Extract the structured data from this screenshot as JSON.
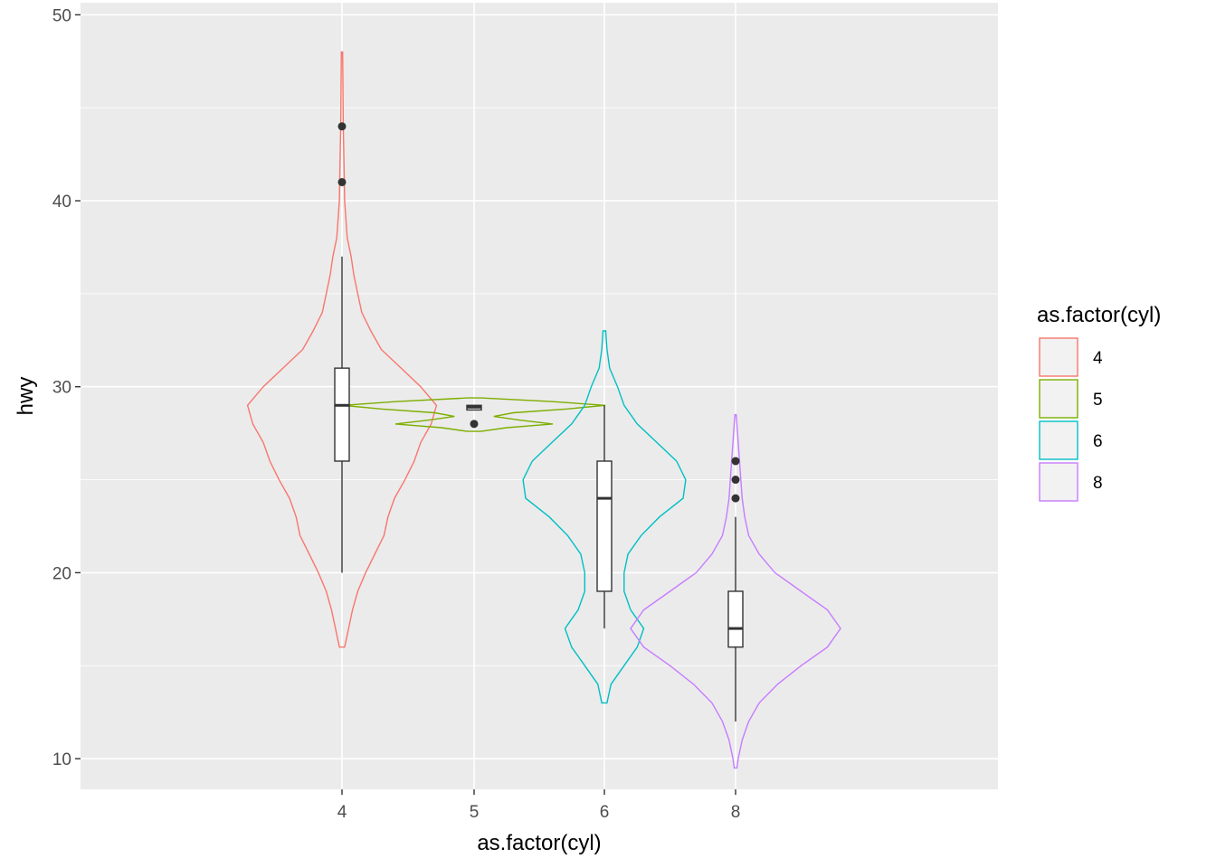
{
  "chart_data": {
    "type": "violin",
    "xlabel": "as.factor(cyl)",
    "ylabel": "hwy",
    "categories": [
      "4",
      "5",
      "6",
      "8"
    ],
    "ylim": [
      8.35,
      50.65
    ],
    "y_ticks": [
      "10",
      "20",
      "30",
      "40",
      "50"
    ],
    "grid": true,
    "legend": {
      "title": "as.factor(cyl)",
      "placement": "right",
      "entries": [
        "4",
        "5",
        "6",
        "8"
      ]
    },
    "series": [
      {
        "category": "4",
        "color": "#F8766D",
        "violin": {
          "ymin": 16,
          "ymax": 48,
          "profile": [
            [
              16,
              0.02
            ],
            [
              17,
              0.05
            ],
            [
              18,
              0.08
            ],
            [
              19,
              0.12
            ],
            [
              20,
              0.18
            ],
            [
              21,
              0.25
            ],
            [
              22,
              0.32
            ],
            [
              23,
              0.35
            ],
            [
              24,
              0.4
            ],
            [
              25,
              0.48
            ],
            [
              26,
              0.55
            ],
            [
              27,
              0.6
            ],
            [
              28,
              0.68
            ],
            [
              29,
              0.72
            ],
            [
              30,
              0.6
            ],
            [
              31,
              0.45
            ],
            [
              32,
              0.3
            ],
            [
              33,
              0.22
            ],
            [
              34,
              0.15
            ],
            [
              35,
              0.12
            ],
            [
              36,
              0.09
            ],
            [
              37,
              0.07
            ],
            [
              38,
              0.04
            ],
            [
              40,
              0.02
            ],
            [
              42,
              0.015
            ],
            [
              44,
              0.01
            ],
            [
              48,
              0.005
            ]
          ]
        },
        "box": {
          "lower": 26,
          "median": 29,
          "upper": 31,
          "whisker_low": 20,
          "whisker_high": 37
        },
        "outliers": [
          44,
          41
        ]
      },
      {
        "category": "5",
        "color": "#7CAE00",
        "violin": {
          "ymin": 27.6,
          "ymax": 29.4,
          "profile": [
            [
              27.6,
              0.05
            ],
            [
              27.8,
              0.25
            ],
            [
              28,
              0.6
            ],
            [
              28.2,
              0.35
            ],
            [
              28.4,
              0.15
            ],
            [
              28.6,
              0.3
            ],
            [
              28.8,
              0.7
            ],
            [
              29,
              1.0
            ],
            [
              29.2,
              0.6
            ],
            [
              29.4,
              0.05
            ]
          ]
        },
        "box": {
          "lower": 28.75,
          "median": 28.9,
          "upper": 29,
          "whisker_low": 28.75,
          "whisker_high": 29
        },
        "outliers": [
          28
        ]
      },
      {
        "category": "6",
        "color": "#00BFC4",
        "violin": {
          "ymin": 13,
          "ymax": 33,
          "profile": [
            [
              13,
              0.02
            ],
            [
              14,
              0.05
            ],
            [
              15,
              0.15
            ],
            [
              16,
              0.25
            ],
            [
              17,
              0.3
            ],
            [
              18,
              0.2
            ],
            [
              19,
              0.15
            ],
            [
              20,
              0.15
            ],
            [
              21,
              0.18
            ],
            [
              22,
              0.28
            ],
            [
              23,
              0.42
            ],
            [
              24,
              0.6
            ],
            [
              25,
              0.62
            ],
            [
              26,
              0.55
            ],
            [
              27,
              0.4
            ],
            [
              28,
              0.25
            ],
            [
              29,
              0.15
            ],
            [
              30,
              0.1
            ],
            [
              31,
              0.04
            ],
            [
              32,
              0.02
            ],
            [
              33,
              0.01
            ]
          ]
        },
        "box": {
          "lower": 19,
          "median": 24,
          "upper": 26,
          "whisker_low": 17,
          "whisker_high": 29
        },
        "outliers": []
      },
      {
        "category": "8",
        "color": "#C77CFF",
        "violin": {
          "ymin": 9.5,
          "ymax": 28.5,
          "profile": [
            [
              9.5,
              0.01
            ],
            [
              10,
              0.02
            ],
            [
              11,
              0.05
            ],
            [
              12,
              0.1
            ],
            [
              13,
              0.18
            ],
            [
              14,
              0.32
            ],
            [
              15,
              0.5
            ],
            [
              16,
              0.7
            ],
            [
              17,
              0.8
            ],
            [
              18,
              0.7
            ],
            [
              19,
              0.5
            ],
            [
              20,
              0.3
            ],
            [
              21,
              0.18
            ],
            [
              22,
              0.1
            ],
            [
              23,
              0.07
            ],
            [
              24,
              0.05
            ],
            [
              25,
              0.04
            ],
            [
              26,
              0.03
            ],
            [
              27,
              0.02
            ],
            [
              28,
              0.01
            ],
            [
              28.5,
              0.005
            ]
          ]
        },
        "box": {
          "lower": 16,
          "median": 17,
          "upper": 19,
          "whisker_low": 12,
          "whisker_high": 23
        },
        "outliers": [
          26,
          25,
          24
        ]
      }
    ]
  }
}
